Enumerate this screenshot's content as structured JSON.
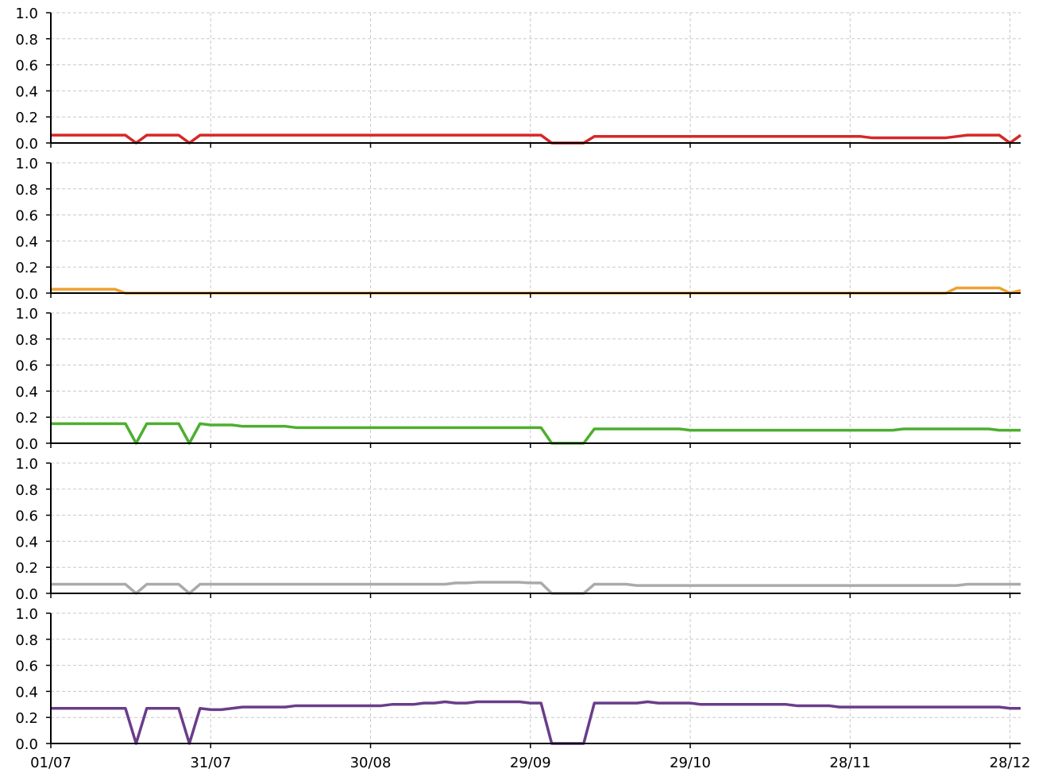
{
  "chart_data": [
    {
      "type": "line",
      "ylim": [
        0,
        1
      ],
      "grid": true,
      "yticks": [
        {
          "value": 0,
          "label": "0.0"
        },
        {
          "value": 0.2,
          "label": "0.2"
        },
        {
          "value": 0.4,
          "label": "0.4"
        },
        {
          "value": 0.6,
          "label": "0.6"
        },
        {
          "value": 0.8,
          "label": "0.8"
        },
        {
          "value": 1,
          "label": "1.0"
        }
      ],
      "series": [
        {
          "color": "#d62728",
          "values": [
            0.06,
            0.06,
            0.06,
            0.06,
            0.06,
            0.06,
            0.06,
            0.06,
            0,
            0.06,
            0.06,
            0.06,
            0.06,
            0,
            0.06,
            0.06,
            0.06,
            0.06,
            0.06,
            0.06,
            0.06,
            0.06,
            0.06,
            0.06,
            0.06,
            0.06,
            0.06,
            0.06,
            0.06,
            0.06,
            0.06,
            0.06,
            0.06,
            0.06,
            0.06,
            0.06,
            0.06,
            0.06,
            0.06,
            0.06,
            0.06,
            0.06,
            0.06,
            0.06,
            0.06,
            0.06,
            0.06,
            0,
            0,
            0,
            0,
            0.05,
            0.05,
            0.05,
            0.05,
            0.05,
            0.05,
            0.05,
            0.05,
            0.05,
            0.05,
            0.05,
            0.05,
            0.05,
            0.05,
            0.05,
            0.05,
            0.05,
            0.05,
            0.05,
            0.05,
            0.05,
            0.05,
            0.05,
            0.05,
            0.05,
            0.05,
            0.04,
            0.04,
            0.04,
            0.04,
            0.04,
            0.04,
            0.04,
            0.04,
            0.05,
            0.06,
            0.06,
            0.06,
            0.06,
            0,
            0.06
          ]
        }
      ]
    },
    {
      "type": "line",
      "ylim": [
        0,
        1
      ],
      "grid": true,
      "yticks": [
        {
          "value": 0,
          "label": "0.0"
        },
        {
          "value": 0.2,
          "label": "0.2"
        },
        {
          "value": 0.4,
          "label": "0.4"
        },
        {
          "value": 0.6,
          "label": "0.6"
        },
        {
          "value": 0.8,
          "label": "0.8"
        },
        {
          "value": 1,
          "label": "1.0"
        }
      ],
      "series": [
        {
          "color": "#f0a030",
          "values": [
            0.03,
            0.03,
            0.03,
            0.03,
            0.03,
            0.03,
            0.03,
            0,
            0,
            0,
            0,
            0,
            0,
            0,
            0,
            0,
            0,
            0,
            0,
            0,
            0,
            0,
            0,
            0,
            0,
            0,
            0,
            0,
            0,
            0,
            0,
            0,
            0,
            0,
            0,
            0,
            0,
            0,
            0,
            0,
            0,
            0,
            0,
            0,
            0,
            0,
            0,
            0,
            0,
            0,
            0,
            0,
            0,
            0,
            0,
            0,
            0,
            0,
            0,
            0,
            0,
            0,
            0,
            0,
            0,
            0,
            0,
            0,
            0,
            0,
            0,
            0,
            0,
            0,
            0,
            0,
            0,
            0,
            0,
            0,
            0,
            0,
            0,
            0,
            0,
            0.04,
            0.04,
            0.04,
            0.04,
            0.04,
            0,
            0.02
          ]
        }
      ]
    },
    {
      "type": "line",
      "ylim": [
        0,
        1
      ],
      "grid": true,
      "yticks": [
        {
          "value": 0,
          "label": "0.0"
        },
        {
          "value": 0.2,
          "label": "0.2"
        },
        {
          "value": 0.4,
          "label": "0.4"
        },
        {
          "value": 0.6,
          "label": "0.6"
        },
        {
          "value": 0.8,
          "label": "0.8"
        },
        {
          "value": 1,
          "label": "1.0"
        }
      ],
      "series": [
        {
          "color": "#4caf2e",
          "values": [
            0.15,
            0.15,
            0.15,
            0.15,
            0.15,
            0.15,
            0.15,
            0.15,
            0,
            0.15,
            0.15,
            0.15,
            0.15,
            0,
            0.15,
            0.14,
            0.14,
            0.14,
            0.13,
            0.13,
            0.13,
            0.13,
            0.13,
            0.12,
            0.12,
            0.12,
            0.12,
            0.12,
            0.12,
            0.12,
            0.12,
            0.12,
            0.12,
            0.12,
            0.12,
            0.12,
            0.12,
            0.12,
            0.12,
            0.12,
            0.12,
            0.12,
            0.12,
            0.12,
            0.12,
            0.12,
            0.12,
            0,
            0,
            0,
            0,
            0.11,
            0.11,
            0.11,
            0.11,
            0.11,
            0.11,
            0.11,
            0.11,
            0.11,
            0.1,
            0.1,
            0.1,
            0.1,
            0.1,
            0.1,
            0.1,
            0.1,
            0.1,
            0.1,
            0.1,
            0.1,
            0.1,
            0.1,
            0.1,
            0.1,
            0.1,
            0.1,
            0.1,
            0.1,
            0.11,
            0.11,
            0.11,
            0.11,
            0.11,
            0.11,
            0.11,
            0.11,
            0.11,
            0.1,
            0.1,
            0.1
          ]
        }
      ]
    },
    {
      "type": "line",
      "ylim": [
        0,
        1
      ],
      "grid": true,
      "yticks": [
        {
          "value": 0,
          "label": "0.0"
        },
        {
          "value": 0.2,
          "label": "0.2"
        },
        {
          "value": 0.4,
          "label": "0.4"
        },
        {
          "value": 0.6,
          "label": "0.6"
        },
        {
          "value": 0.8,
          "label": "0.8"
        },
        {
          "value": 1,
          "label": "1.0"
        }
      ],
      "series": [
        {
          "color": "#aaaaaa",
          "values": [
            0.07,
            0.07,
            0.07,
            0.07,
            0.07,
            0.07,
            0.07,
            0.07,
            0,
            0.07,
            0.07,
            0.07,
            0.07,
            0,
            0.07,
            0.07,
            0.07,
            0.07,
            0.07,
            0.07,
            0.07,
            0.07,
            0.07,
            0.07,
            0.07,
            0.07,
            0.07,
            0.07,
            0.07,
            0.07,
            0.07,
            0.07,
            0.07,
            0.07,
            0.07,
            0.07,
            0.07,
            0.07,
            0.08,
            0.08,
            0.085,
            0.085,
            0.085,
            0.085,
            0.085,
            0.08,
            0.08,
            0,
            0,
            0,
            0,
            0.07,
            0.07,
            0.07,
            0.07,
            0.06,
            0.06,
            0.06,
            0.06,
            0.06,
            0.06,
            0.06,
            0.06,
            0.06,
            0.06,
            0.06,
            0.06,
            0.06,
            0.06,
            0.06,
            0.06,
            0.06,
            0.06,
            0.06,
            0.06,
            0.06,
            0.06,
            0.06,
            0.06,
            0.06,
            0.06,
            0.06,
            0.06,
            0.06,
            0.06,
            0.06,
            0.07,
            0.07,
            0.07,
            0.07,
            0.07,
            0.07
          ]
        }
      ]
    },
    {
      "type": "line",
      "ylim": [
        0,
        1
      ],
      "grid": true,
      "yticks": [
        {
          "value": 0,
          "label": "0.0"
        },
        {
          "value": 0.2,
          "label": "0.2"
        },
        {
          "value": 0.4,
          "label": "0.4"
        },
        {
          "value": 0.6,
          "label": "0.6"
        },
        {
          "value": 0.8,
          "label": "0.8"
        },
        {
          "value": 1,
          "label": "1.0"
        }
      ],
      "x": [
        "01/07",
        "03/07",
        "05/07",
        "07/07",
        "09/07",
        "11/07",
        "13/07",
        "15/07",
        "17/07",
        "19/07",
        "21/07",
        "23/07",
        "25/07",
        "27/07",
        "29/07",
        "31/07",
        "02/08",
        "04/08",
        "06/08",
        "08/08",
        "10/08",
        "12/08",
        "14/08",
        "16/08",
        "18/08",
        "20/08",
        "22/08",
        "24/08",
        "26/08",
        "28/08",
        "30/08",
        "01/09",
        "03/09",
        "05/09",
        "07/09",
        "09/09",
        "11/09",
        "13/09",
        "15/09",
        "17/09",
        "19/09",
        "21/09",
        "23/09",
        "25/09",
        "27/09",
        "29/09",
        "01/10",
        "03/10",
        "05/10",
        "07/10",
        "09/10",
        "11/10",
        "13/10",
        "15/10",
        "17/10",
        "19/10",
        "21/10",
        "23/10",
        "25/10",
        "27/10",
        "29/10",
        "31/10",
        "02/11",
        "04/11",
        "06/11",
        "08/11",
        "10/11",
        "12/11",
        "14/11",
        "16/11",
        "18/11",
        "20/11",
        "22/11",
        "24/11",
        "26/11",
        "28/11",
        "30/11",
        "02/12",
        "04/12",
        "06/12",
        "08/12",
        "10/12",
        "12/12",
        "14/12",
        "16/12",
        "18/12",
        "20/12",
        "22/12",
        "24/12",
        "26/12",
        "28/12",
        "30/12"
      ],
      "xlim": [
        "01/07",
        "30/12"
      ],
      "xticks": [
        "01/07",
        "31/07",
        "30/08",
        "29/09",
        "29/10",
        "28/11",
        "28/12"
      ],
      "series": [
        {
          "color": "#6a3d8a",
          "values": [
            0.27,
            0.27,
            0.27,
            0.27,
            0.27,
            0.27,
            0.27,
            0.27,
            0,
            0.27,
            0.27,
            0.27,
            0.27,
            0,
            0.27,
            0.26,
            0.26,
            0.27,
            0.28,
            0.28,
            0.28,
            0.28,
            0.28,
            0.29,
            0.29,
            0.29,
            0.29,
            0.29,
            0.29,
            0.29,
            0.29,
            0.29,
            0.3,
            0.3,
            0.3,
            0.31,
            0.31,
            0.32,
            0.31,
            0.31,
            0.32,
            0.32,
            0.32,
            0.32,
            0.32,
            0.31,
            0.31,
            0,
            0,
            0,
            0,
            0.31,
            0.31,
            0.31,
            0.31,
            0.31,
            0.32,
            0.31,
            0.31,
            0.31,
            0.31,
            0.3,
            0.3,
            0.3,
            0.3,
            0.3,
            0.3,
            0.3,
            0.3,
            0.3,
            0.29,
            0.29,
            0.29,
            0.29,
            0.28,
            0.28,
            0.28,
            0.28,
            0.28,
            0.28,
            0.28,
            0.28,
            0.28,
            0.28,
            0.28,
            0.28,
            0.28,
            0.28,
            0.28,
            0.28,
            0.27,
            0.27
          ]
        }
      ]
    }
  ]
}
